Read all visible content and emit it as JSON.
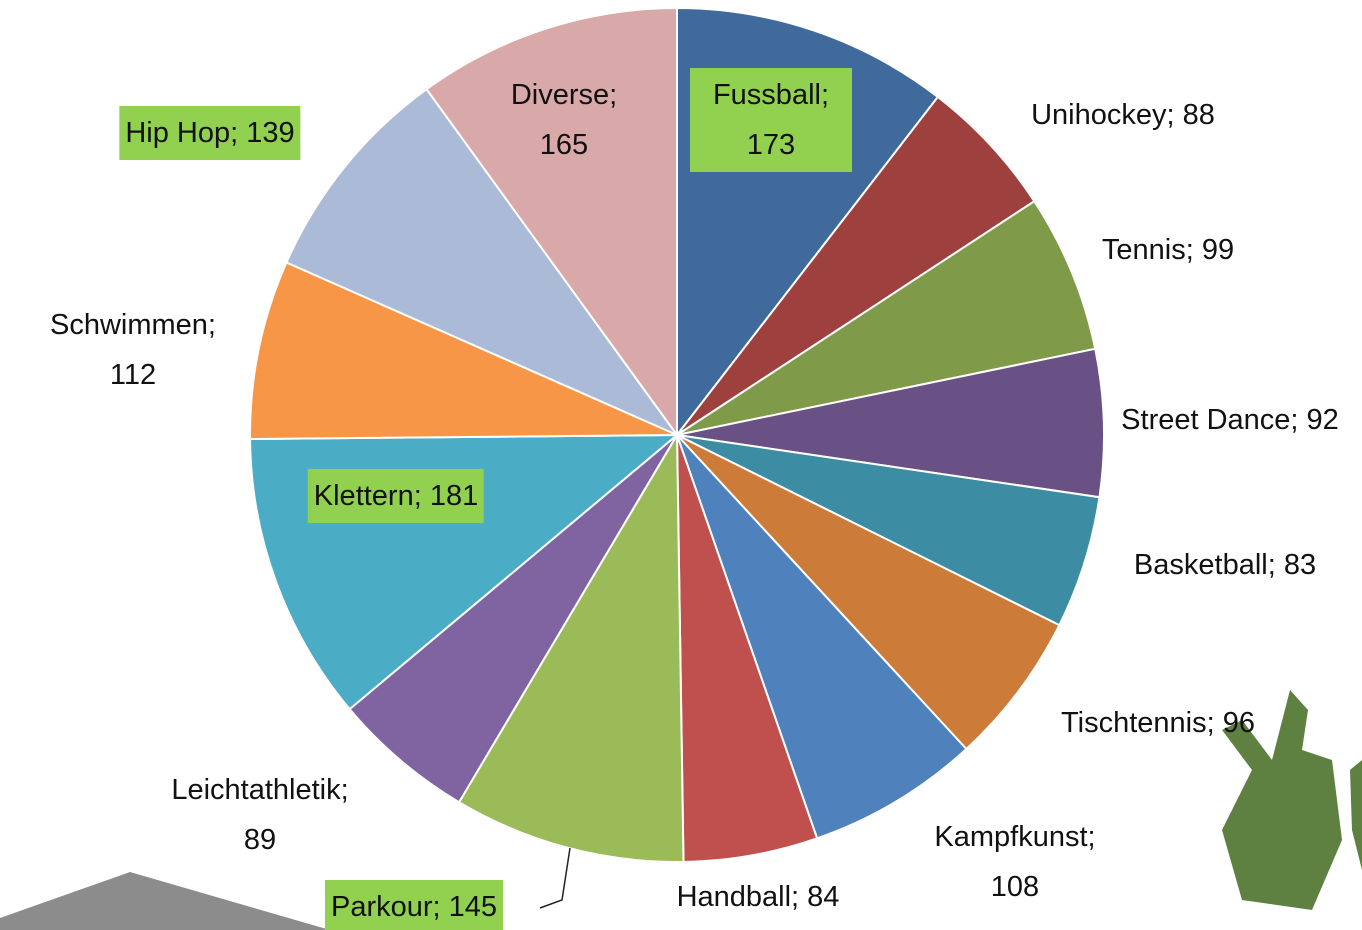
{
  "chart_data": {
    "type": "pie",
    "values": [
      173,
      88,
      99,
      92,
      83,
      96,
      108,
      84,
      145,
      89,
      181,
      112,
      139,
      165
    ],
    "value_labels": [
      "Fussball; 173",
      "Unihockey; 88",
      "Tennis; 99",
      "Street Dance; 92",
      "Basketball; 83",
      "Tischtennis; 96",
      "Kampfkunst; 108",
      "Handball; 84",
      "Parkour; 145",
      "Leichtathletik; 89",
      "Klettern; 181",
      "Schwimmen; 112",
      "Hip Hop; 139",
      "Diverse; 165"
    ],
    "colors": [
      "#406a9c",
      "#9e413e",
      "#7f9a48",
      "#695185",
      "#3c8da3",
      "#cc7b38",
      "#4f81bd",
      "#c0504d",
      "#9bbb59",
      "#8064a2",
      "#4bacc6",
      "#f79646",
      "#aabad7",
      "#d9a9a9"
    ],
    "highlighted_labels": [
      0,
      8,
      10,
      12
    ],
    "label_highlight_color": "#92d050"
  }
}
